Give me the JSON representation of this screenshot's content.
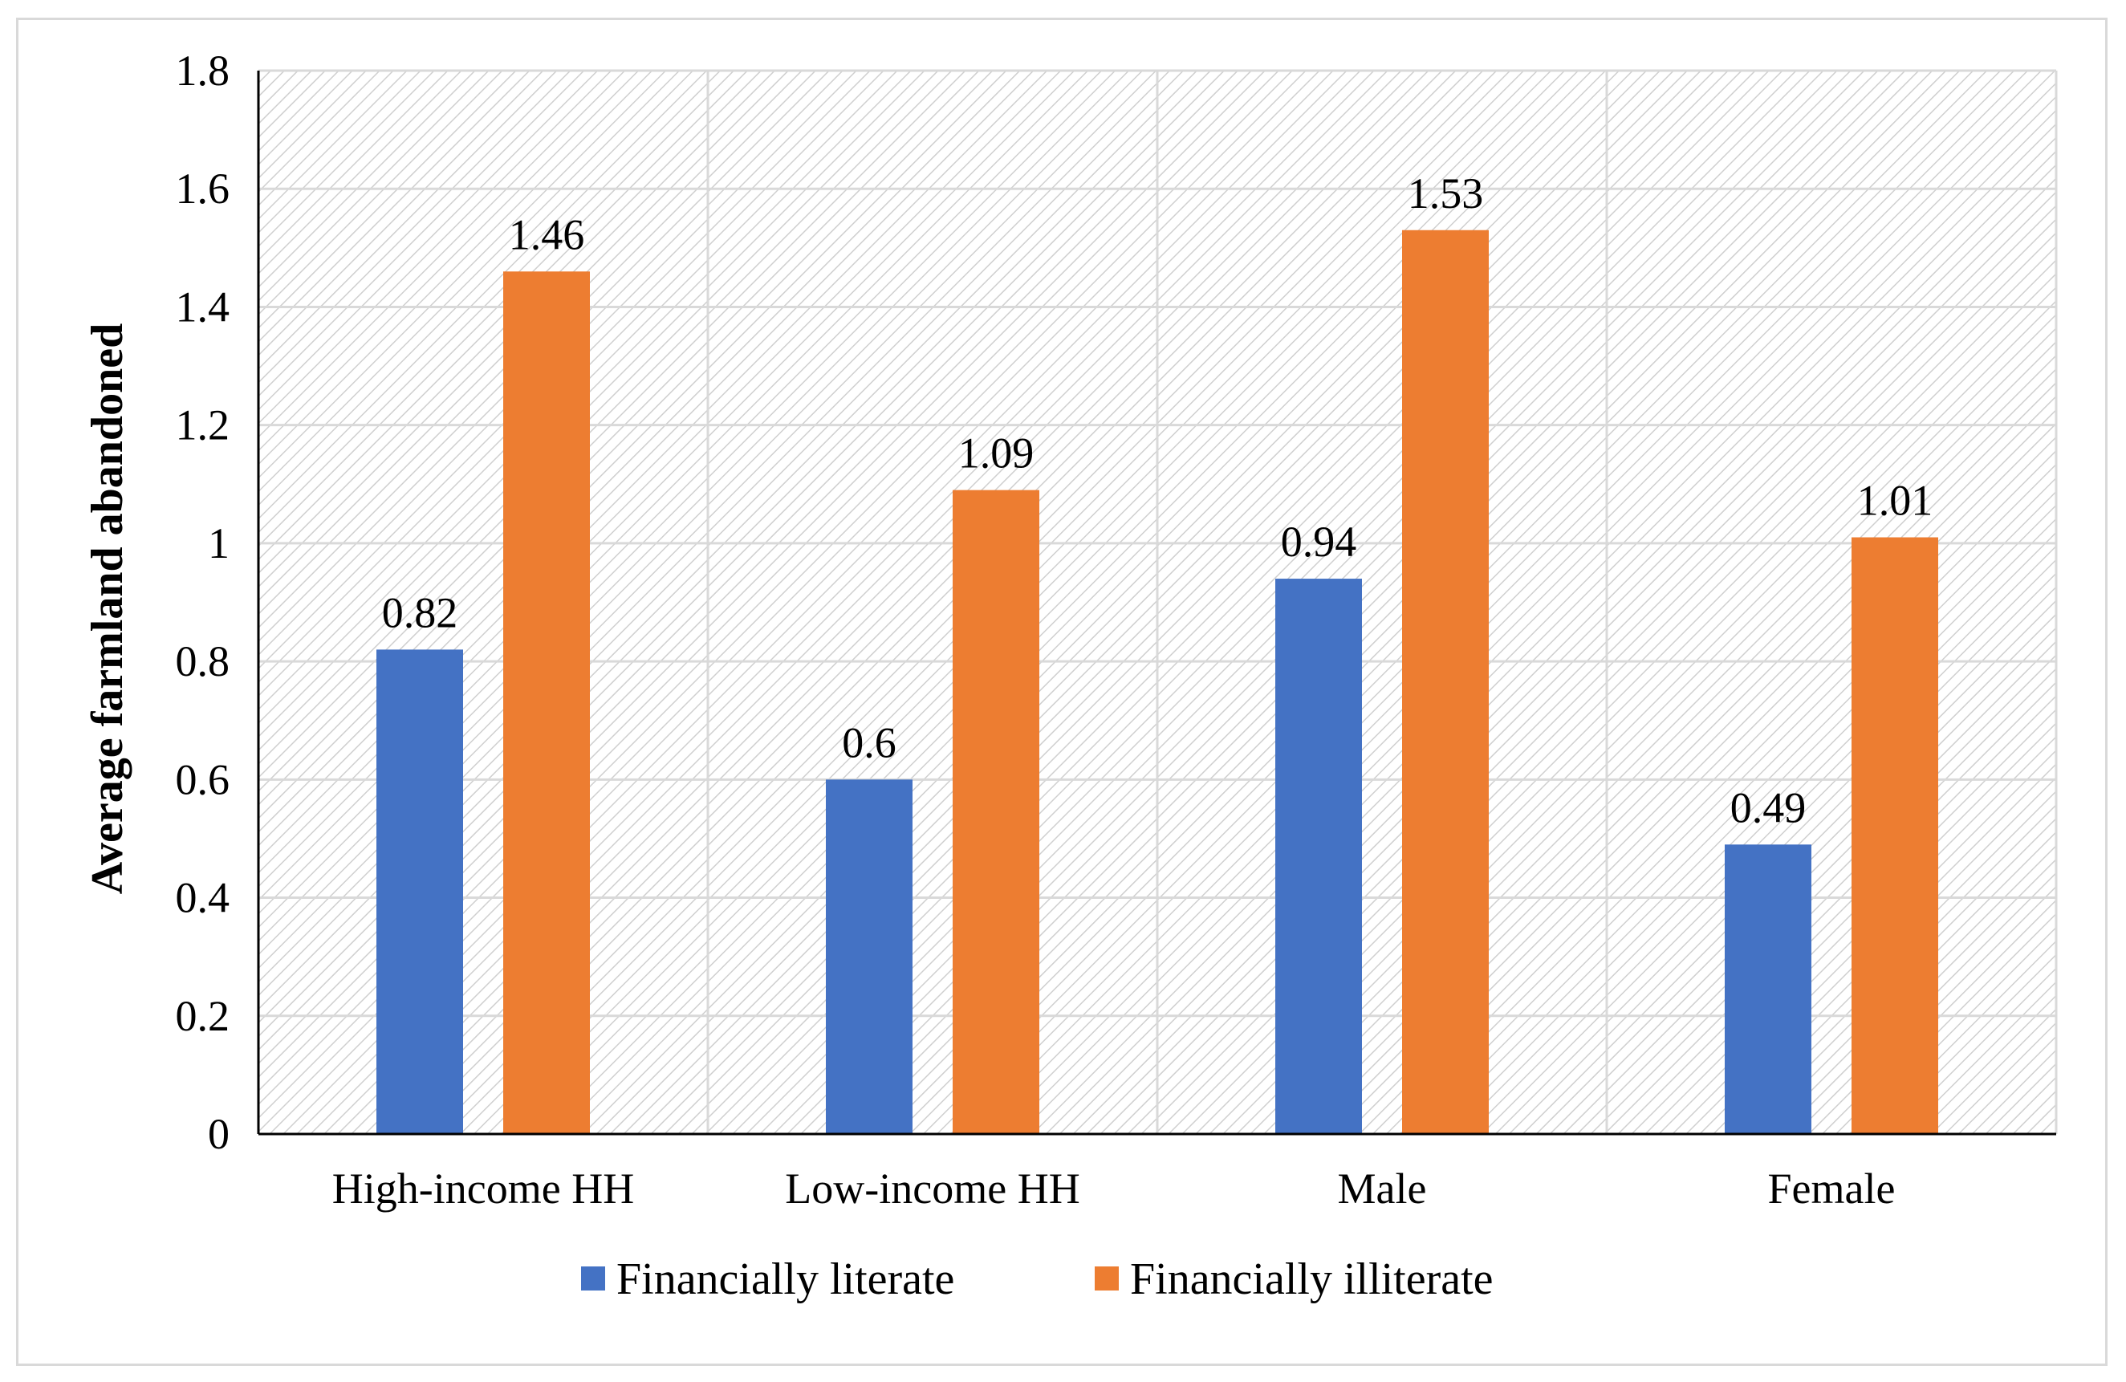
{
  "chart_data": {
    "type": "bar",
    "title": "",
    "xlabel": "",
    "ylabel": "Average farmland abandoned",
    "ylim": [
      0,
      1.8
    ],
    "yticks": [
      0,
      0.2,
      0.4,
      0.6,
      0.8,
      1,
      1.2,
      1.4,
      1.6,
      1.8
    ],
    "ytick_labels": [
      "0",
      "0.2",
      "0.4",
      "0.6",
      "0.8",
      "1",
      "1.2",
      "1.4",
      "1.6",
      "1.8"
    ],
    "grid": true,
    "legend_position": "bottom",
    "categories": [
      "High-income HH",
      "Low-income HH",
      "Male",
      "Female"
    ],
    "series": [
      {
        "name": "Financially literate",
        "color": "#4472c4",
        "values": [
          0.82,
          0.6,
          0.94,
          0.49
        ],
        "labels": [
          "0.82",
          "0.6",
          "0.94",
          "0.49"
        ]
      },
      {
        "name": "Financially illiterate",
        "color": "#ed7d31",
        "values": [
          1.46,
          1.09,
          1.53,
          1.01
        ],
        "labels": [
          "1.46",
          "1.09",
          "1.53",
          "1.01"
        ]
      }
    ]
  },
  "colors": {
    "plot_background": "#ffffff",
    "hatch": "#d4d4d4",
    "gridline": "#d9d9d9",
    "axis": "#000000"
  }
}
